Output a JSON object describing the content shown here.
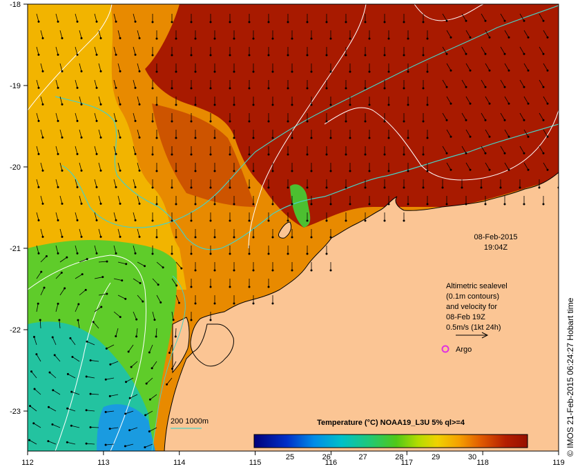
{
  "map": {
    "x_ticks": [
      "112",
      "113",
      "114",
      "115",
      "116",
      "117",
      "118",
      "119"
    ],
    "y_ticks": [
      "-18",
      "-19",
      "-20",
      "-21",
      "-22",
      "-23"
    ],
    "datetime": {
      "date": "08-Feb-2015",
      "time": "19:04Z"
    },
    "legend_lines": [
      "Altimetric sealevel",
      "(0.1m contours)",
      "and velocity for",
      "08-Feb 19Z",
      "0.5m/s (1kt 24h)"
    ],
    "argo_label": "Argo",
    "bathymetry_label": "200  1000m",
    "colorbar": {
      "title": "Temperature (°C) NOAA19_L3U 5% ql>=4",
      "ticks": [
        "25",
        "26",
        "27",
        "28",
        "29",
        "30"
      ]
    },
    "credit": "© IMOS 21-Feb-2015 06:24:27 Hobart time",
    "colors": {
      "land": "#fbc594",
      "hot": "#a51700",
      "warm": "#e06a00",
      "mid": "#f2b100",
      "green": "#5fcc2a",
      "cool": "#23c3a0",
      "cold": "#1a9be0",
      "contour": "#ffffff",
      "bathymetry": "#49d1c4",
      "argo": "#e030e0"
    }
  }
}
